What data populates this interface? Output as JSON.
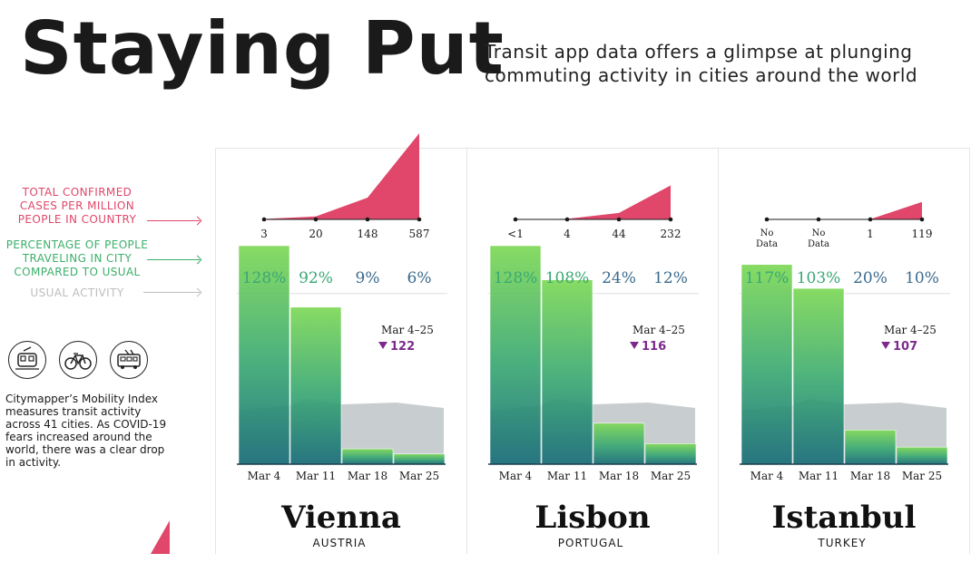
{
  "header": {
    "title": "Staying Put",
    "subtitle": "Transit app data offers a glimpse at plunging commuting activity in cities around the world"
  },
  "legend": {
    "cases": "TOTAL CONFIRMED CASES PER MILLION PEOPLE IN COUNTRY",
    "travel": "PERCENTAGE OF PEOPLE TRAVELING IN CITY COMPARED TO USUAL",
    "usual": "USUAL ACTIVITY"
  },
  "icons": [
    "tram-icon",
    "bicycle-icon",
    "bus-icon"
  ],
  "description": "Citymapper’s Mobility Index measures transit activity across 41 cities. As COVID-19 fears increased around the world, there was a clear drop in activity.",
  "colors": {
    "cases": "#e0476a",
    "travel_top": "#7ed957",
    "travel_bottom": "#1a6e7a",
    "drop": "#7b2a8c",
    "pct_text": "#3b6a8c"
  },
  "chart_data": [
    {
      "type": "bar",
      "city": "Vienna",
      "country": "AUSTRIA",
      "categories": [
        "Mar 4",
        "Mar 11",
        "Mar 18",
        "Mar 25"
      ],
      "values": [
        128,
        92,
        9,
        6
      ],
      "value_labels": [
        "128%",
        "92%",
        "9%",
        "6%"
      ],
      "cases": [
        3,
        20,
        148,
        587
      ],
      "case_labels": [
        "3",
        "20",
        "148",
        "587"
      ],
      "change_label": "Mar 4–25",
      "change_value": "122"
    },
    {
      "type": "bar",
      "city": "Lisbon",
      "country": "PORTUGAL",
      "categories": [
        "Mar 4",
        "Mar 11",
        "Mar 18",
        "Mar 25"
      ],
      "values": [
        128,
        108,
        24,
        12
      ],
      "value_labels": [
        "128%",
        "108%",
        "24%",
        "12%"
      ],
      "cases": [
        0.5,
        4,
        44,
        232
      ],
      "case_labels": [
        "<1",
        "4",
        "44",
        "232"
      ],
      "change_label": "Mar 4–25",
      "change_value": "116"
    },
    {
      "type": "bar",
      "city": "Istanbul",
      "country": "TURKEY",
      "categories": [
        "Mar 4",
        "Mar 11",
        "Mar 18",
        "Mar 25"
      ],
      "values": [
        117,
        103,
        20,
        10
      ],
      "value_labels": [
        "117%",
        "103%",
        "20%",
        "10%"
      ],
      "cases": [
        0,
        0,
        1,
        119
      ],
      "case_labels": [
        "No Data",
        "No Data",
        "1",
        "119"
      ],
      "change_label": "Mar 4–25",
      "change_value": "107"
    }
  ]
}
